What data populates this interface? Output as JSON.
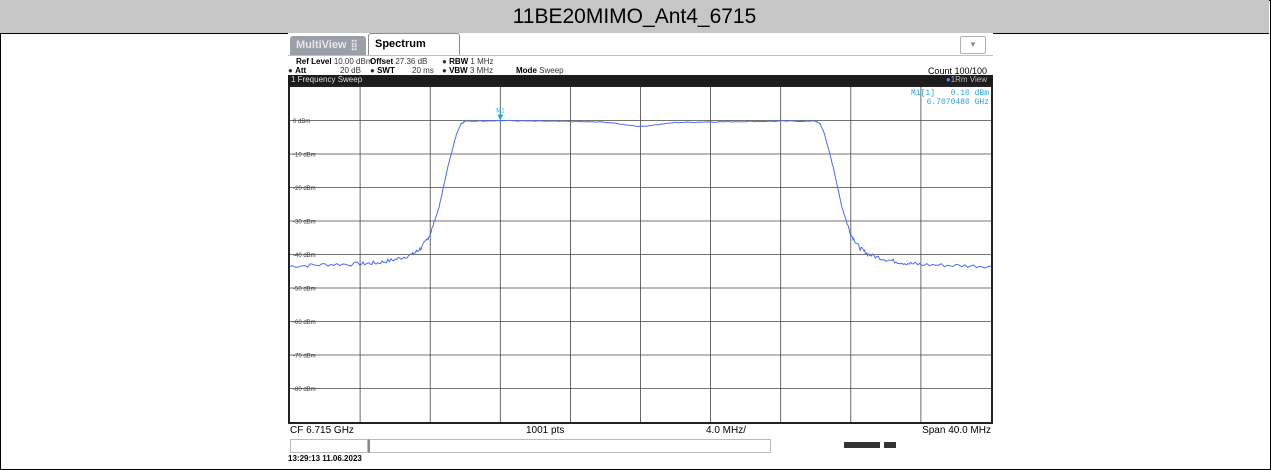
{
  "title": "11BE20MIMO_Ant4_6715",
  "tabs": {
    "multiview": "MultiView",
    "spectrum": "Spectrum"
  },
  "settings": {
    "ref_level_label": "Ref Level",
    "ref_level_value": "10.00 dBm",
    "offset_label": "Offset",
    "offset_value": "27.36 dB",
    "rbw_label": "RBW",
    "rbw_value": "1 MHz",
    "att_label": "Att",
    "att_value": "20 dB",
    "swt_label": "SWT",
    "swt_value": "20 ms",
    "vbw_label": "VBW",
    "vbw_value": "3 MHz",
    "mode_label": "Mode",
    "mode_value": "Sweep",
    "count": "Count 100/100"
  },
  "window": {
    "name": "1 Frequency Sweep",
    "trace": "1Rm View"
  },
  "marker": {
    "label": "M1[1]",
    "level": "0.10 dBm",
    "freq": "6.7070480 GHz",
    "tag": "M1"
  },
  "footer": {
    "cf": "CF 6.715 GHz",
    "pts": "1001 pts",
    "div": "4.0 MHz/",
    "span": "Span 40.0 MHz"
  },
  "timestamp": "13:29:13  11.06.2023",
  "colors": {
    "trace": "#4a6cf0",
    "marker": "#2aa3d8",
    "title_bg": "#c6c6c6"
  },
  "chart_data": {
    "type": "line",
    "xlabel": "",
    "ylabel": "",
    "x_center_ghz": 6.715,
    "span_mhz": 40.0,
    "ylim": [
      -90,
      10
    ],
    "y_ticks": [
      "0 dBm",
      "-10 dBm",
      "-20 dBm",
      "-30 dBm",
      "-40 dBm",
      "-50 dBm",
      "-60 dBm",
      "-70 dBm",
      "-80 dBm"
    ],
    "grid": true,
    "series": [
      {
        "x": [
          -20,
          -18,
          -16,
          -15,
          -14,
          -13,
          -12.5,
          -12,
          -11.5,
          -11,
          -10.5,
          -10.25,
          -10,
          -8,
          -6,
          -4,
          -2,
          0,
          2,
          4,
          6,
          8,
          10,
          10.25,
          10.5,
          11,
          11.5,
          12,
          12.5,
          13,
          14,
          15,
          16,
          18,
          20
        ],
        "values": [
          -43.5,
          -43,
          -42.8,
          -42.5,
          -41.5,
          -40,
          -38,
          -34,
          -26,
          -14,
          -4,
          -1,
          -0.2,
          0,
          -0.2,
          -0.3,
          -0.5,
          -1.8,
          -0.6,
          -0.4,
          -0.3,
          -0.2,
          -0.2,
          -1,
          -4,
          -14,
          -26,
          -34,
          -38,
          -40,
          -41.5,
          -42.5,
          -43,
          -43.3,
          -43.5
        ]
      }
    ]
  }
}
